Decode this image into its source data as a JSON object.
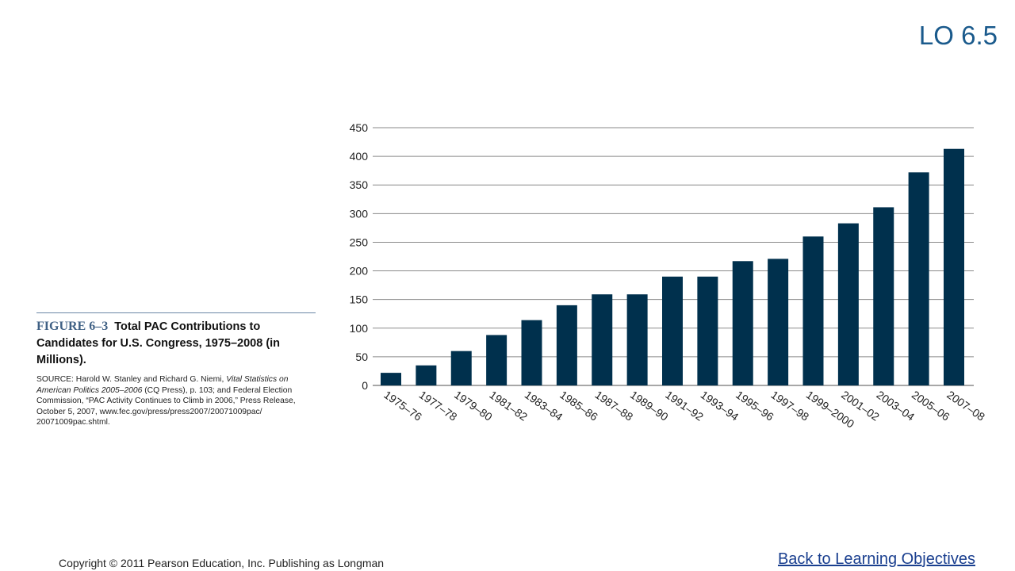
{
  "slide": {
    "lo_tag": "LO 6.5",
    "copyright": "Copyright © 2011 Pearson Education, Inc. Publishing as Longman",
    "back_link": "Back to Learning Objectives"
  },
  "figure": {
    "number": "FIGURE 6–3",
    "title": "Total PAC Contributions to Candidates for U.S. Congress, 1975–2008 (in Millions).",
    "source_prefix": "SOURCE: Harold W. Stanley and Richard G. Niemi, ",
    "source_book": "Vital Statistics on American Politics 2005–2006",
    "source_rest": " (CQ Press), p. 103; and Federal Election Commission, “PAC Activity Continues to Climb in 2006,” Press Release, October 5, 2007, www.fec.gov/press/press2007/20071009pac/ 20071009pac.shtml."
  },
  "colors": {
    "bar": "#00304d",
    "grid": "#8a8a8a",
    "accent": "#1a5a8c"
  },
  "chart_data": {
    "type": "bar",
    "title": "Total PAC Contributions to Candidates for U.S. Congress, 1975–2008 (in Millions)",
    "xlabel": "",
    "ylabel": "",
    "ylim": [
      0,
      450
    ],
    "yticks": [
      0,
      50,
      100,
      150,
      200,
      250,
      300,
      350,
      400,
      450
    ],
    "grid": true,
    "categories": [
      "1975–76",
      "1977–78",
      "1979–80",
      "1981–82",
      "1983–84",
      "1985–86",
      "1987–88",
      "1989–90",
      "1991–92",
      "1993–94",
      "1995–96",
      "1997–98",
      "1999–2000",
      "2001–02",
      "2003–04",
      "2005–06",
      "2007–08"
    ],
    "values": [
      22,
      35,
      60,
      88,
      114,
      140,
      159,
      159,
      190,
      190,
      217,
      221,
      260,
      283,
      311,
      372,
      413
    ]
  }
}
